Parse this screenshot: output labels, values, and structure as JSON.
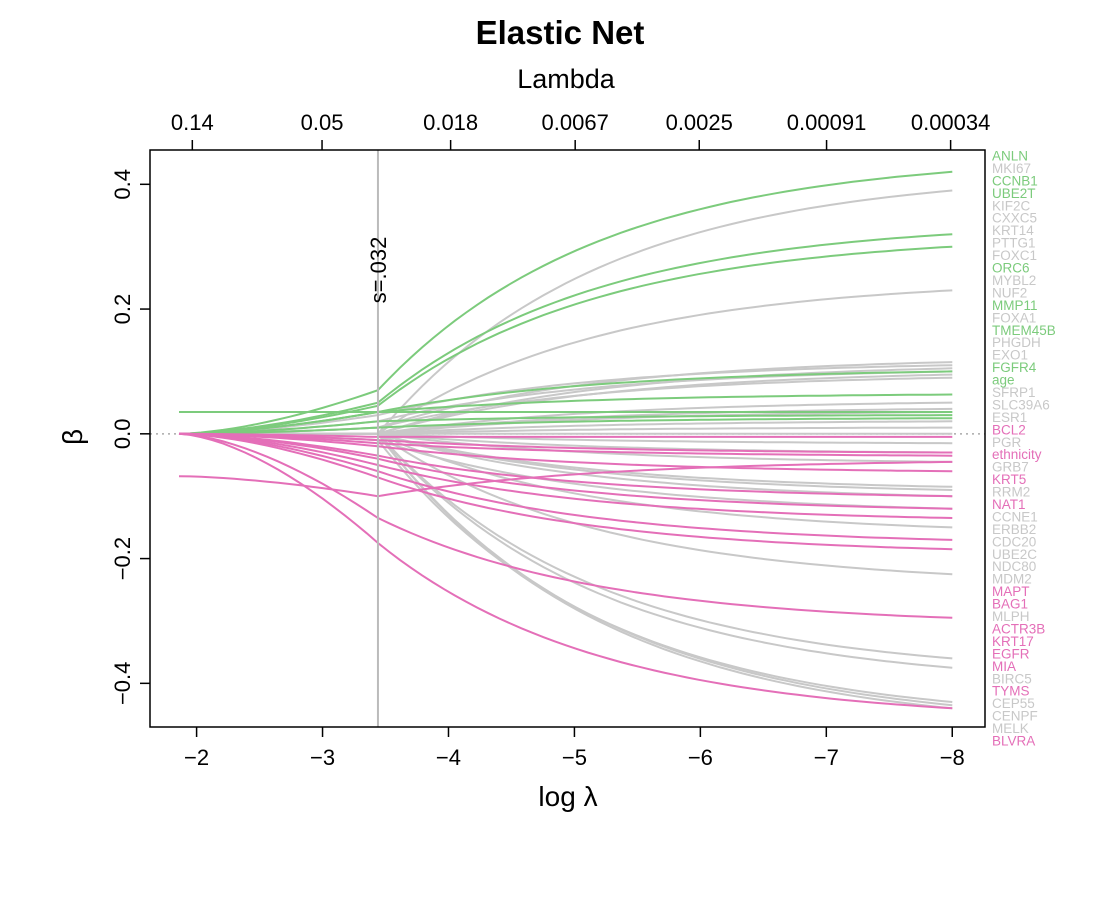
{
  "chart_data": {
    "type": "line",
    "title": "Elastic Net",
    "top_axis_label": "Lambda",
    "xlabel": "log λ",
    "ylabel": "β",
    "xlim": [
      -1.63,
      -8.26
    ],
    "ylim": [
      -0.47,
      0.455
    ],
    "x_ticks": [
      -2,
      -3,
      -4,
      -5,
      -6,
      -7,
      -8
    ],
    "x_tick_labels": [
      "−2",
      "−3",
      "−4",
      "−5",
      "−6",
      "−7",
      "−8"
    ],
    "y_ticks": [
      -0.4,
      -0.2,
      0.0,
      0.2,
      0.4
    ],
    "y_tick_labels": [
      "−0.4",
      "−0.2",
      "0.0",
      "0.2",
      "0.4"
    ],
    "top_ticks": [
      {
        "x": -1.966,
        "label": "0.14"
      },
      {
        "x": -2.996,
        "label": "0.05"
      },
      {
        "x": -4.017,
        "label": "0.018"
      },
      {
        "x": -5.006,
        "label": "0.0067"
      },
      {
        "x": -5.991,
        "label": "0.0025"
      },
      {
        "x": -7.002,
        "label": "0.00091"
      },
      {
        "x": -7.987,
        "label": "0.00034"
      }
    ],
    "vline": {
      "x": -3.44,
      "label": "s=.032"
    },
    "hline": {
      "y": 0
    },
    "x_start": -1.86,
    "x_end": -8.0,
    "colors": {
      "positive": "#7ccb7c",
      "negative": "#e46fb8",
      "neutral": "#c8c8c8",
      "axis": "#000000",
      "vline": "#bbbbbb",
      "zero": "#aaaaaa"
    },
    "series": [
      {
        "name": "ANLN",
        "group": "positive",
        "end": 0.42,
        "start": 0.0,
        "mid": 0.07
      },
      {
        "name": "MKI67",
        "group": "neutral",
        "end": 0.39,
        "start": 0.0,
        "mid": 0.0
      },
      {
        "name": "CCNB1",
        "group": "positive",
        "end": 0.32,
        "start": 0.0,
        "mid": 0.05
      },
      {
        "name": "UBE2T",
        "group": "positive",
        "end": 0.3,
        "start": 0.0,
        "mid": 0.045
      },
      {
        "name": "KIF2C",
        "group": "neutral",
        "end": 0.23,
        "start": 0.0,
        "mid": 0.0
      },
      {
        "name": "CXXC5",
        "group": "neutral",
        "end": 0.115,
        "start": 0.0,
        "mid": 0.01
      },
      {
        "name": "KRT14",
        "group": "neutral",
        "end": 0.11,
        "start": 0.0,
        "mid": 0.03
      },
      {
        "name": "PTTG1",
        "group": "neutral",
        "end": 0.105,
        "start": 0.0,
        "mid": 0.0
      },
      {
        "name": "FOXC1",
        "group": "neutral",
        "end": 0.1,
        "start": 0.0,
        "mid": 0.02
      },
      {
        "name": "ORC6",
        "group": "positive",
        "end": 0.1,
        "start": 0.0,
        "mid": 0.035
      },
      {
        "name": "MYBL2",
        "group": "neutral",
        "end": 0.095,
        "start": 0.0,
        "mid": 0.0
      },
      {
        "name": "NUF2",
        "group": "neutral",
        "end": 0.09,
        "start": 0.0,
        "mid": 0.01
      },
      {
        "name": "MMP11",
        "group": "positive",
        "end": 0.063,
        "start": 0.0,
        "mid": 0.035
      },
      {
        "name": "FOXA1",
        "group": "neutral",
        "end": 0.05,
        "start": 0.0,
        "mid": 0.0
      },
      {
        "name": "TMEM45B",
        "group": "positive",
        "end": 0.035,
        "start": 0.035,
        "mid": 0.035
      },
      {
        "name": "PHGDH",
        "group": "neutral",
        "end": 0.04,
        "start": 0.0,
        "mid": 0.0
      },
      {
        "name": "EXO1",
        "group": "neutral",
        "end": 0.035,
        "start": 0.0,
        "mid": 0.0
      },
      {
        "name": "FGFR4",
        "group": "positive",
        "end": 0.03,
        "start": 0.0,
        "mid": 0.02
      },
      {
        "name": "age",
        "group": "positive",
        "end": 0.025,
        "start": 0.0,
        "mid": 0.01
      },
      {
        "name": "SFRP1",
        "group": "neutral",
        "end": 0.02,
        "start": 0.0,
        "mid": 0.0
      },
      {
        "name": "SLC39A6",
        "group": "neutral",
        "end": 0.01,
        "start": 0.0,
        "mid": 0.0
      },
      {
        "name": "ESR1",
        "group": "neutral",
        "end": 0.0,
        "start": 0.0,
        "mid": 0.0
      },
      {
        "name": "BCL2",
        "group": "negative",
        "end": -0.005,
        "start": 0.0,
        "mid": -0.005
      },
      {
        "name": "PGR",
        "group": "neutral",
        "end": -0.015,
        "start": 0.0,
        "mid": 0.0
      },
      {
        "name": "ethnicity",
        "group": "negative",
        "end": -0.03,
        "start": 0.0,
        "mid": -0.01
      },
      {
        "name": "GRB7",
        "group": "neutral",
        "end": -0.03,
        "start": 0.0,
        "mid": 0.0
      },
      {
        "name": "KRT5",
        "group": "negative",
        "end": -0.035,
        "start": 0.0,
        "mid": -0.015
      },
      {
        "name": "RRM2",
        "group": "neutral",
        "end": -0.045,
        "start": 0.0,
        "mid": 0.0
      },
      {
        "name": "NAT1",
        "group": "negative",
        "end": -0.06,
        "start": 0.0,
        "mid": -0.02
      },
      {
        "name": "CCNE1",
        "group": "neutral",
        "end": -0.085,
        "start": 0.0,
        "mid": 0.0
      },
      {
        "name": "ERBB2",
        "group": "neutral",
        "end": -0.09,
        "start": 0.0,
        "mid": 0.0
      },
      {
        "name": "CDC20",
        "group": "neutral",
        "end": -0.1,
        "start": 0.0,
        "mid": 0.0
      },
      {
        "name": "UBE2C",
        "group": "neutral",
        "end": -0.12,
        "start": 0.0,
        "mid": -0.01
      },
      {
        "name": "NDC80",
        "group": "neutral",
        "end": -0.15,
        "start": 0.0,
        "mid": 0.0
      },
      {
        "name": "MDM2",
        "group": "neutral",
        "end": -0.225,
        "start": 0.0,
        "mid": 0.0
      },
      {
        "name": "MAPT",
        "group": "negative",
        "end": -0.1,
        "start": 0.0,
        "mid": -0.035
      },
      {
        "name": "BAG1",
        "group": "negative",
        "end": -0.12,
        "start": 0.0,
        "mid": -0.04
      },
      {
        "name": "MLPH",
        "group": "neutral",
        "end": -0.36,
        "start": 0.0,
        "mid": 0.0
      },
      {
        "name": "ACTR3B",
        "group": "negative",
        "end": -0.135,
        "start": 0.0,
        "mid": -0.05
      },
      {
        "name": "KRT17",
        "group": "negative",
        "end": -0.17,
        "start": 0.0,
        "mid": -0.06
      },
      {
        "name": "EGFR",
        "group": "negative",
        "end": -0.185,
        "start": 0.0,
        "mid": -0.07
      },
      {
        "name": "MIA",
        "group": "negative",
        "end": -0.045,
        "start": -0.068,
        "mid": -0.1
      },
      {
        "name": "BIRC5",
        "group": "neutral",
        "end": -0.375,
        "start": 0.0,
        "mid": 0.0
      },
      {
        "name": "TYMS",
        "group": "negative",
        "end": -0.295,
        "start": 0.0,
        "mid": -0.135
      },
      {
        "name": "CEP55",
        "group": "neutral",
        "end": -0.43,
        "start": 0.0,
        "mid": -0.01
      },
      {
        "name": "CENPF",
        "group": "neutral",
        "end": -0.435,
        "start": 0.0,
        "mid": 0.0
      },
      {
        "name": "MELK",
        "group": "neutral",
        "end": -0.44,
        "start": 0.0,
        "mid": 0.0
      },
      {
        "name": "BLVRA",
        "group": "negative",
        "end": -0.44,
        "start": 0.0,
        "mid": -0.175
      }
    ]
  }
}
